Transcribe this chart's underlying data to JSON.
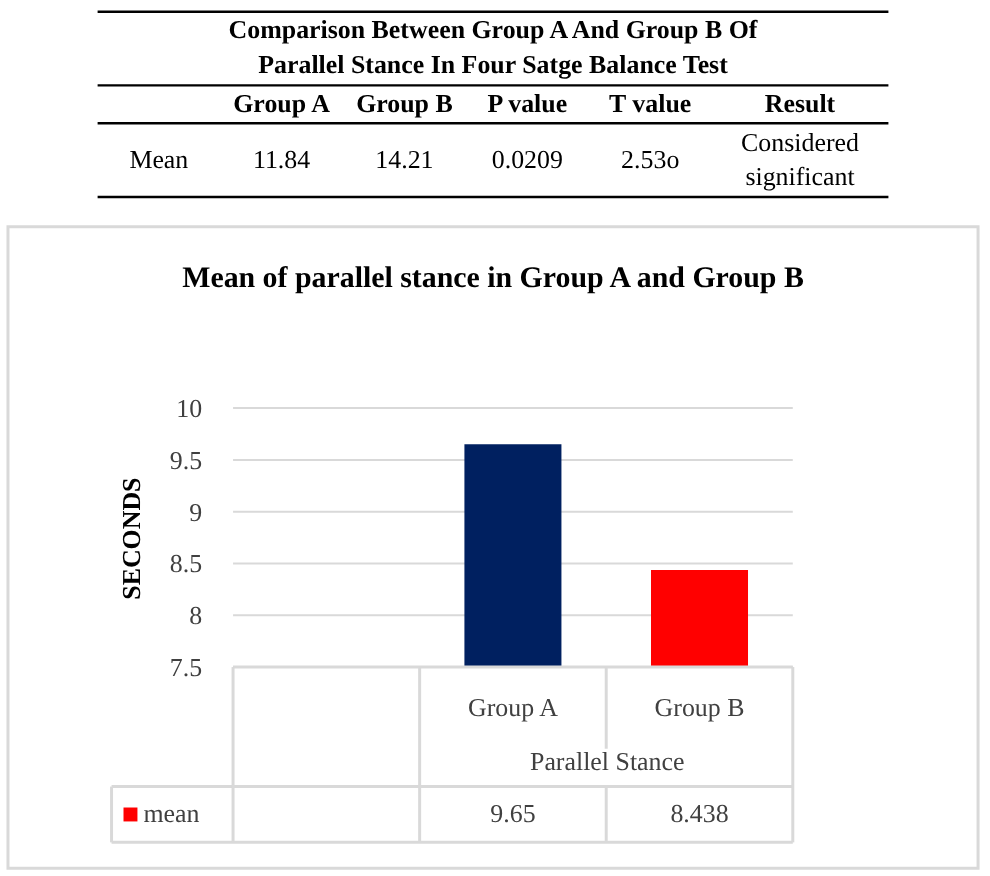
{
  "chart_data": [
    {
      "type": "other",
      "title": "Comparison Between Group A And Group B Of Parallel Stance In Four Satge Balance Test",
      "categories": [
        "Group A",
        "Group B",
        "P value",
        "T value",
        "Result"
      ],
      "annotations": [
        "Mean",
        "11.84",
        "14.21",
        "0.0209",
        "2.53o",
        "Considered significant"
      ]
    },
    {
      "type": "bar",
      "title": "Mean of parallel stance in Group A and Group B",
      "xlabel": "Parallel Stance",
      "ylabel": "SECONDS",
      "categories": [
        "Group A",
        "Group B"
      ],
      "series": [
        {
          "name": "mean",
          "color": "#ff0000",
          "colors": [
            "#002060",
            "#ff0000"
          ],
          "values": [
            9.65,
            8.438
          ]
        }
      ],
      "ylim": [
        7.5,
        10
      ],
      "yticks": [
        7.5,
        8,
        8.5,
        9,
        9.5,
        10
      ],
      "grid": "y",
      "legend": "bottom left",
      "data_labels": true
    }
  ]
}
